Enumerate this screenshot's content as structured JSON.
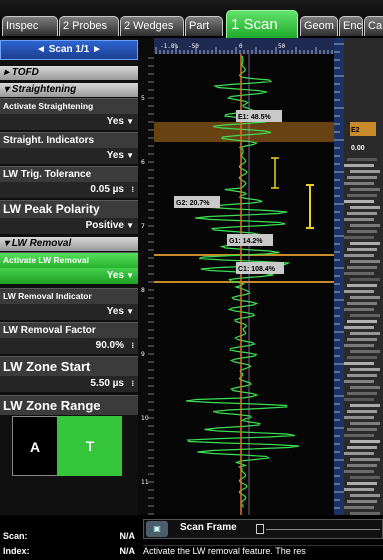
{
  "tabs": [
    {
      "label": "Inspec"
    },
    {
      "label": "2 Probes"
    },
    {
      "label": "2 Wedges"
    },
    {
      "label": "Part"
    },
    {
      "label": "1 Scan"
    },
    {
      "label": "Geom"
    },
    {
      "label": "Enc"
    },
    {
      "label": "Ca"
    }
  ],
  "panel": {
    "scan_nav": "◄  Scan 1/1  ►",
    "tofd": "▸ TOFD",
    "straightening": "▾ Straightening",
    "activate_straightening": {
      "label": "Activate Straightening",
      "value": "Yes"
    },
    "straight_indicators": {
      "label": "Straight. Indicators",
      "value": "Yes"
    },
    "lw_trig_tolerance": {
      "label": "LW Trig. Tolerance",
      "value": "0.05 µs"
    },
    "lw_peak_polarity": {
      "label": "LW Peak Polarity",
      "value": "Positive"
    },
    "lw_removal": "▾ LW Removal",
    "activate_lw_removal": {
      "label": "Activate LW Removal",
      "value": "Yes"
    },
    "lw_removal_indicator": {
      "label": "LW Removal Indicator",
      "value": "Yes"
    },
    "lw_removal_factor": {
      "label": "LW Removal Factor",
      "value": "90.0%"
    },
    "lw_zone_start": {
      "label": "LW Zone Start",
      "value": "5.50 µs"
    },
    "lw_zone_range": {
      "label": "LW Zone Range"
    },
    "a_label": "A",
    "t_label": "T"
  },
  "chart": {
    "ruler_labels": [
      "-1.8%",
      "-50",
      "0",
      "50"
    ],
    "depth_labels": [
      "5",
      "6",
      "7",
      "8",
      "9",
      "10",
      "11"
    ],
    "right_labels": [
      "E2",
      "0.00"
    ],
    "gates": [
      {
        "label": "E1: 48.5%"
      },
      {
        "label": "G2: 20.7%"
      },
      {
        "label": "G1: 14.2%"
      },
      {
        "label": "C1: 108.4%"
      }
    ]
  },
  "bottom": {
    "scan_label": "Scan:",
    "scan_value": "N/A",
    "index_label": "Index:",
    "index_value": "N/A",
    "frame_label": "Scan Frame",
    "help": "Activate the LW removal feature. The res"
  },
  "colors": {
    "accent": "#35c63c",
    "signal": "#3be051",
    "gate_orange": "#c98a2b",
    "cursor": "#e0702a"
  }
}
